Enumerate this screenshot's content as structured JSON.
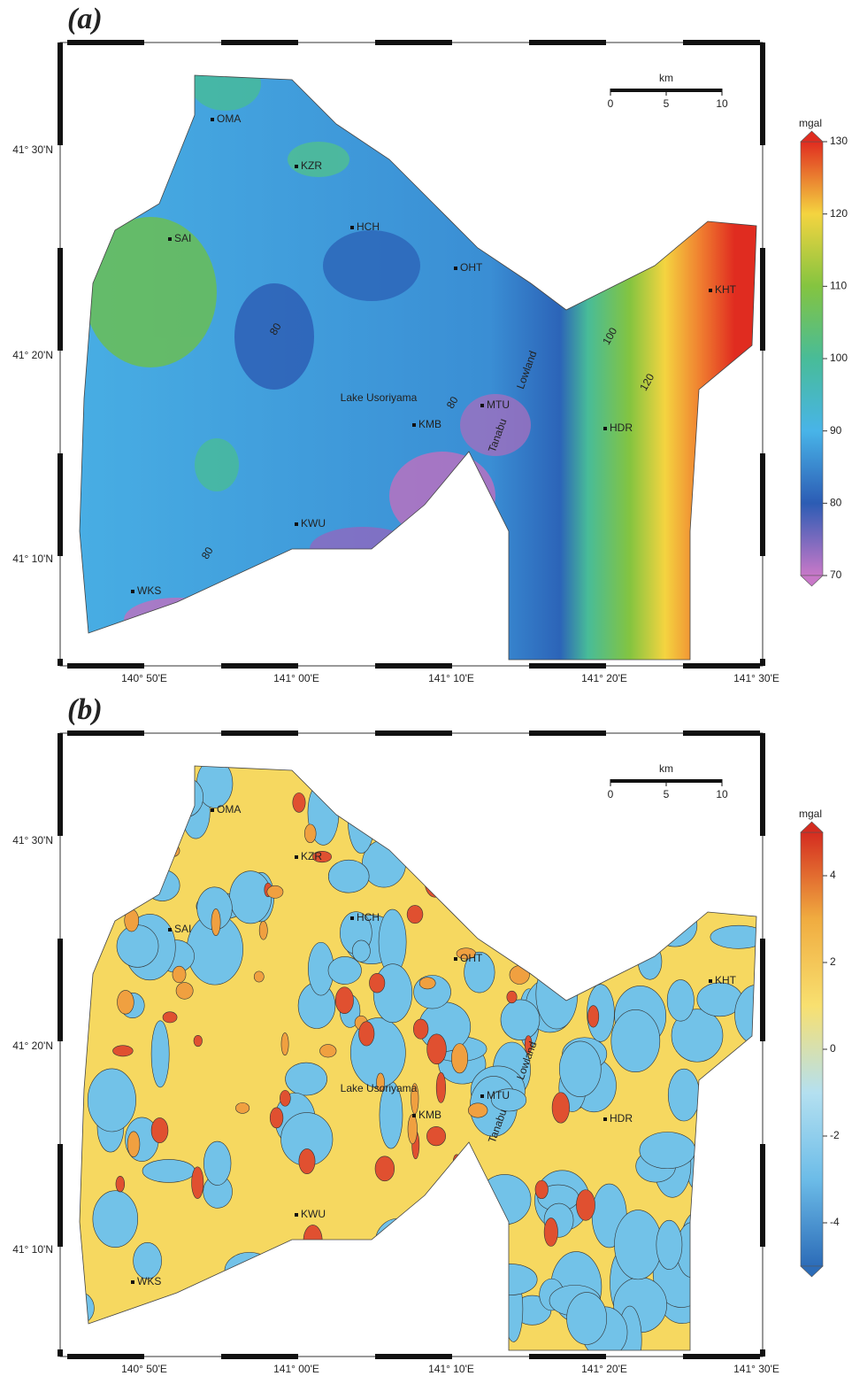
{
  "panels": [
    {
      "label": "(a)",
      "lat_labels": [
        "41° 30'N",
        "41° 20'N",
        "41° 10'N"
      ],
      "lon_labels": [
        "140° 50'E",
        "141° 00'E",
        "141° 10'E",
        "141° 20'E",
        "141° 30'E"
      ],
      "scale_bar": {
        "unit": "km",
        "ticks": [
          0,
          5,
          10
        ]
      },
      "colorbar": {
        "unit": "mgal",
        "lim": [
          70,
          130
        ],
        "ticks": [
          130,
          120,
          110,
          100,
          90,
          80,
          70
        ],
        "colors": [
          "#c878c8",
          "#2c5cb4",
          "#48b4e8",
          "#48bc98",
          "#84c440",
          "#f4d440",
          "#e02c20"
        ]
      },
      "stations": [
        "OMA",
        "KZR",
        "HCH",
        "SAI",
        "OHT",
        "KHT",
        "MTU",
        "KMB",
        "HDR",
        "KWU",
        "WKS"
      ],
      "place_labels": [
        "Lake Usoriyama",
        "Tanabu",
        "Lowland"
      ],
      "contour_labels": [
        80,
        80,
        100,
        120,
        80
      ]
    },
    {
      "label": "(b)",
      "lat_labels": [
        "41° 30'N",
        "41° 20'N",
        "41° 10'N"
      ],
      "lon_labels": [
        "140° 50'E",
        "141° 00'E",
        "141° 10'E",
        "141° 20'E",
        "141° 30'E"
      ],
      "scale_bar": {
        "unit": "km",
        "ticks": [
          0,
          5,
          10
        ]
      },
      "colorbar": {
        "unit": "mgal",
        "lim": [
          -5,
          5
        ],
        "ticks": [
          4,
          2,
          0,
          -2,
          -4
        ],
        "colors": [
          "#2c6cb8",
          "#6cbce8",
          "#b4e0f0",
          "#f8e070",
          "#f0ac40",
          "#d42c20"
        ]
      },
      "stations": [
        "OMA",
        "KZR",
        "HCH",
        "SAI",
        "OHT",
        "KHT",
        "MTU",
        "KMB",
        "HDR",
        "KWU",
        "WKS"
      ],
      "place_labels": [
        "Lake Usoriyama",
        "Tanabu",
        "Lowland"
      ]
    }
  ]
}
